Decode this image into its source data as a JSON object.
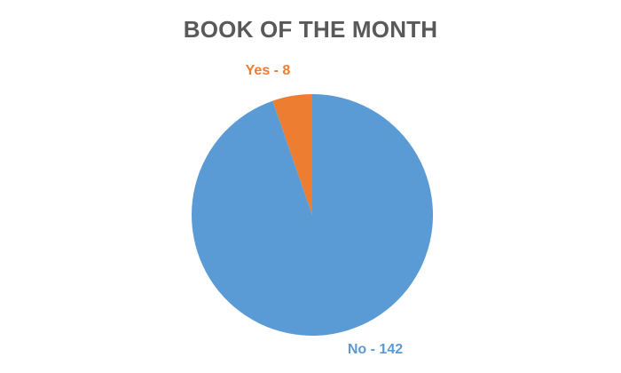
{
  "chart_data": {
    "type": "pie",
    "title": "BOOK OF THE MONTH",
    "slices": [
      {
        "label": "Yes",
        "value": 8,
        "color": "#ED7D31",
        "display": "Yes - 8"
      },
      {
        "label": "No",
        "value": 142,
        "color": "#5B9BD5",
        "display": "No - 142"
      }
    ],
    "start_angle_deg": 0,
    "direction": "counterclockwise"
  }
}
